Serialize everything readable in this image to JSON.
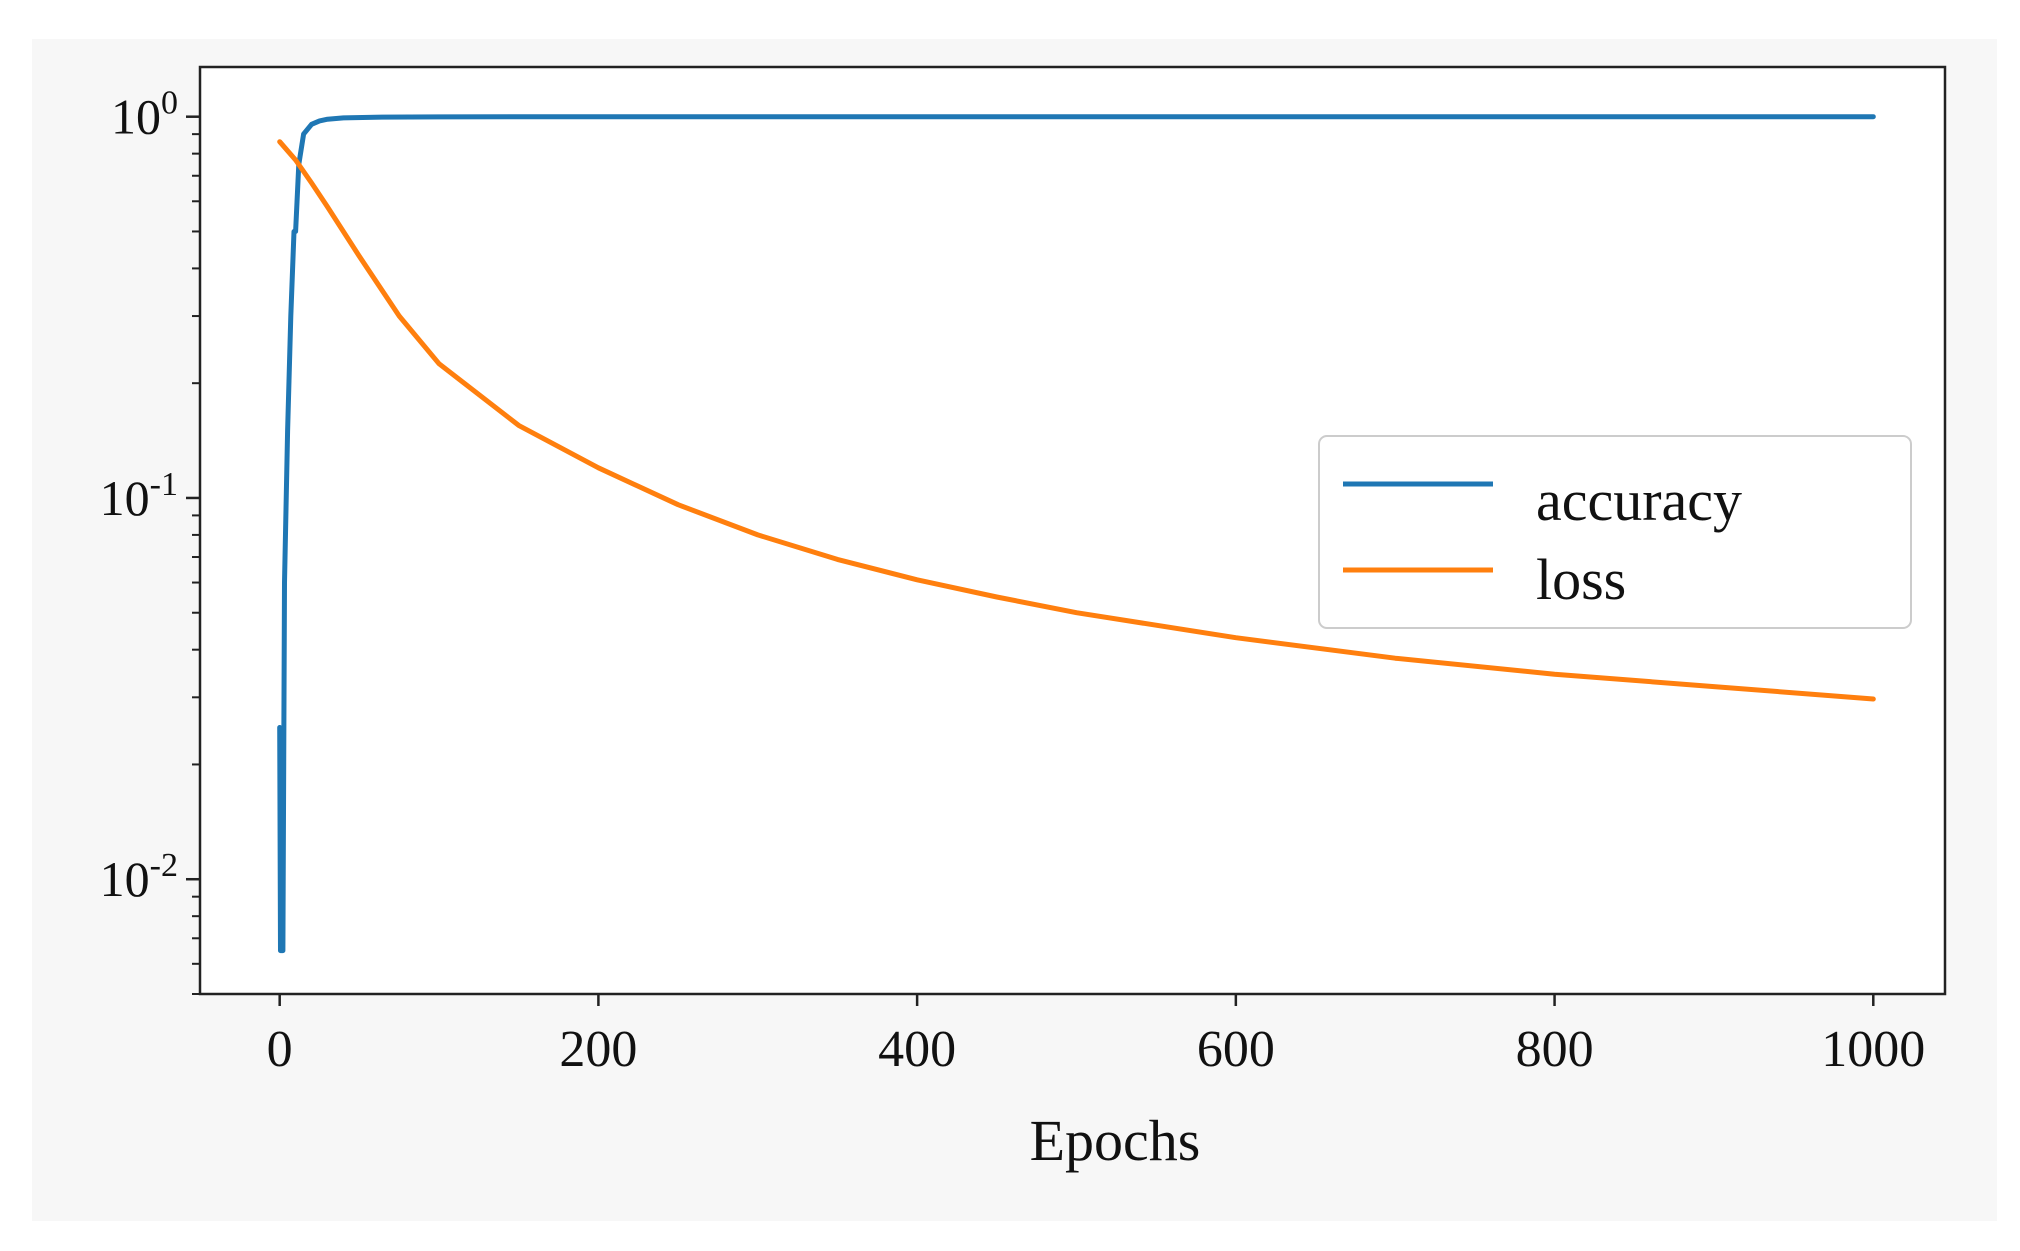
{
  "chart_data": {
    "type": "line",
    "title": "",
    "xlabel": "Epochs",
    "ylabel": "",
    "xlim": [
      -50,
      1045
    ],
    "ylim": [
      0.005,
      1.35
    ],
    "yscale": "log",
    "xticks": [
      {
        "value": 0,
        "label": "0"
      },
      {
        "value": 200,
        "label": "200"
      },
      {
        "value": 400,
        "label": "400"
      },
      {
        "value": 600,
        "label": "600"
      },
      {
        "value": 800,
        "label": "800"
      },
      {
        "value": 1000,
        "label": "1000"
      }
    ],
    "yticks": [
      {
        "value": 1,
        "base": "10",
        "exp": "0"
      },
      {
        "value": 0.1,
        "base": "10",
        "exp": "-1"
      },
      {
        "value": 0.01,
        "base": "10",
        "exp": "-2"
      }
    ],
    "grid": false,
    "legend": {
      "position": "center-right"
    },
    "series": [
      {
        "name": "accuracy",
        "color": "#1f77b4",
        "x": [
          0,
          0.5,
          1,
          1.5,
          2,
          3,
          5,
          7,
          9,
          10,
          12,
          15,
          20,
          25,
          30,
          40,
          60,
          100,
          150,
          200,
          300,
          400,
          600,
          800,
          1000
        ],
        "y": [
          0.025,
          0.0065,
          0.0065,
          0.0065,
          0.0065,
          0.06,
          0.15,
          0.3,
          0.5,
          0.5,
          0.75,
          0.9,
          0.955,
          0.975,
          0.985,
          0.993,
          0.997,
          0.999,
          1.0,
          1.0,
          1.0,
          1.0,
          1.0,
          1.0,
          1.0
        ]
      },
      {
        "name": "loss",
        "color": "#ff7f0e",
        "x": [
          0,
          10,
          20,
          30,
          50,
          75,
          100,
          150,
          200,
          250,
          300,
          350,
          400,
          450,
          500,
          600,
          700,
          800,
          900,
          1000
        ],
        "y": [
          0.86,
          0.77,
          0.67,
          0.58,
          0.43,
          0.3,
          0.225,
          0.155,
          0.12,
          0.096,
          0.08,
          0.069,
          0.061,
          0.055,
          0.05,
          0.043,
          0.038,
          0.0345,
          0.032,
          0.0297
        ]
      }
    ]
  }
}
